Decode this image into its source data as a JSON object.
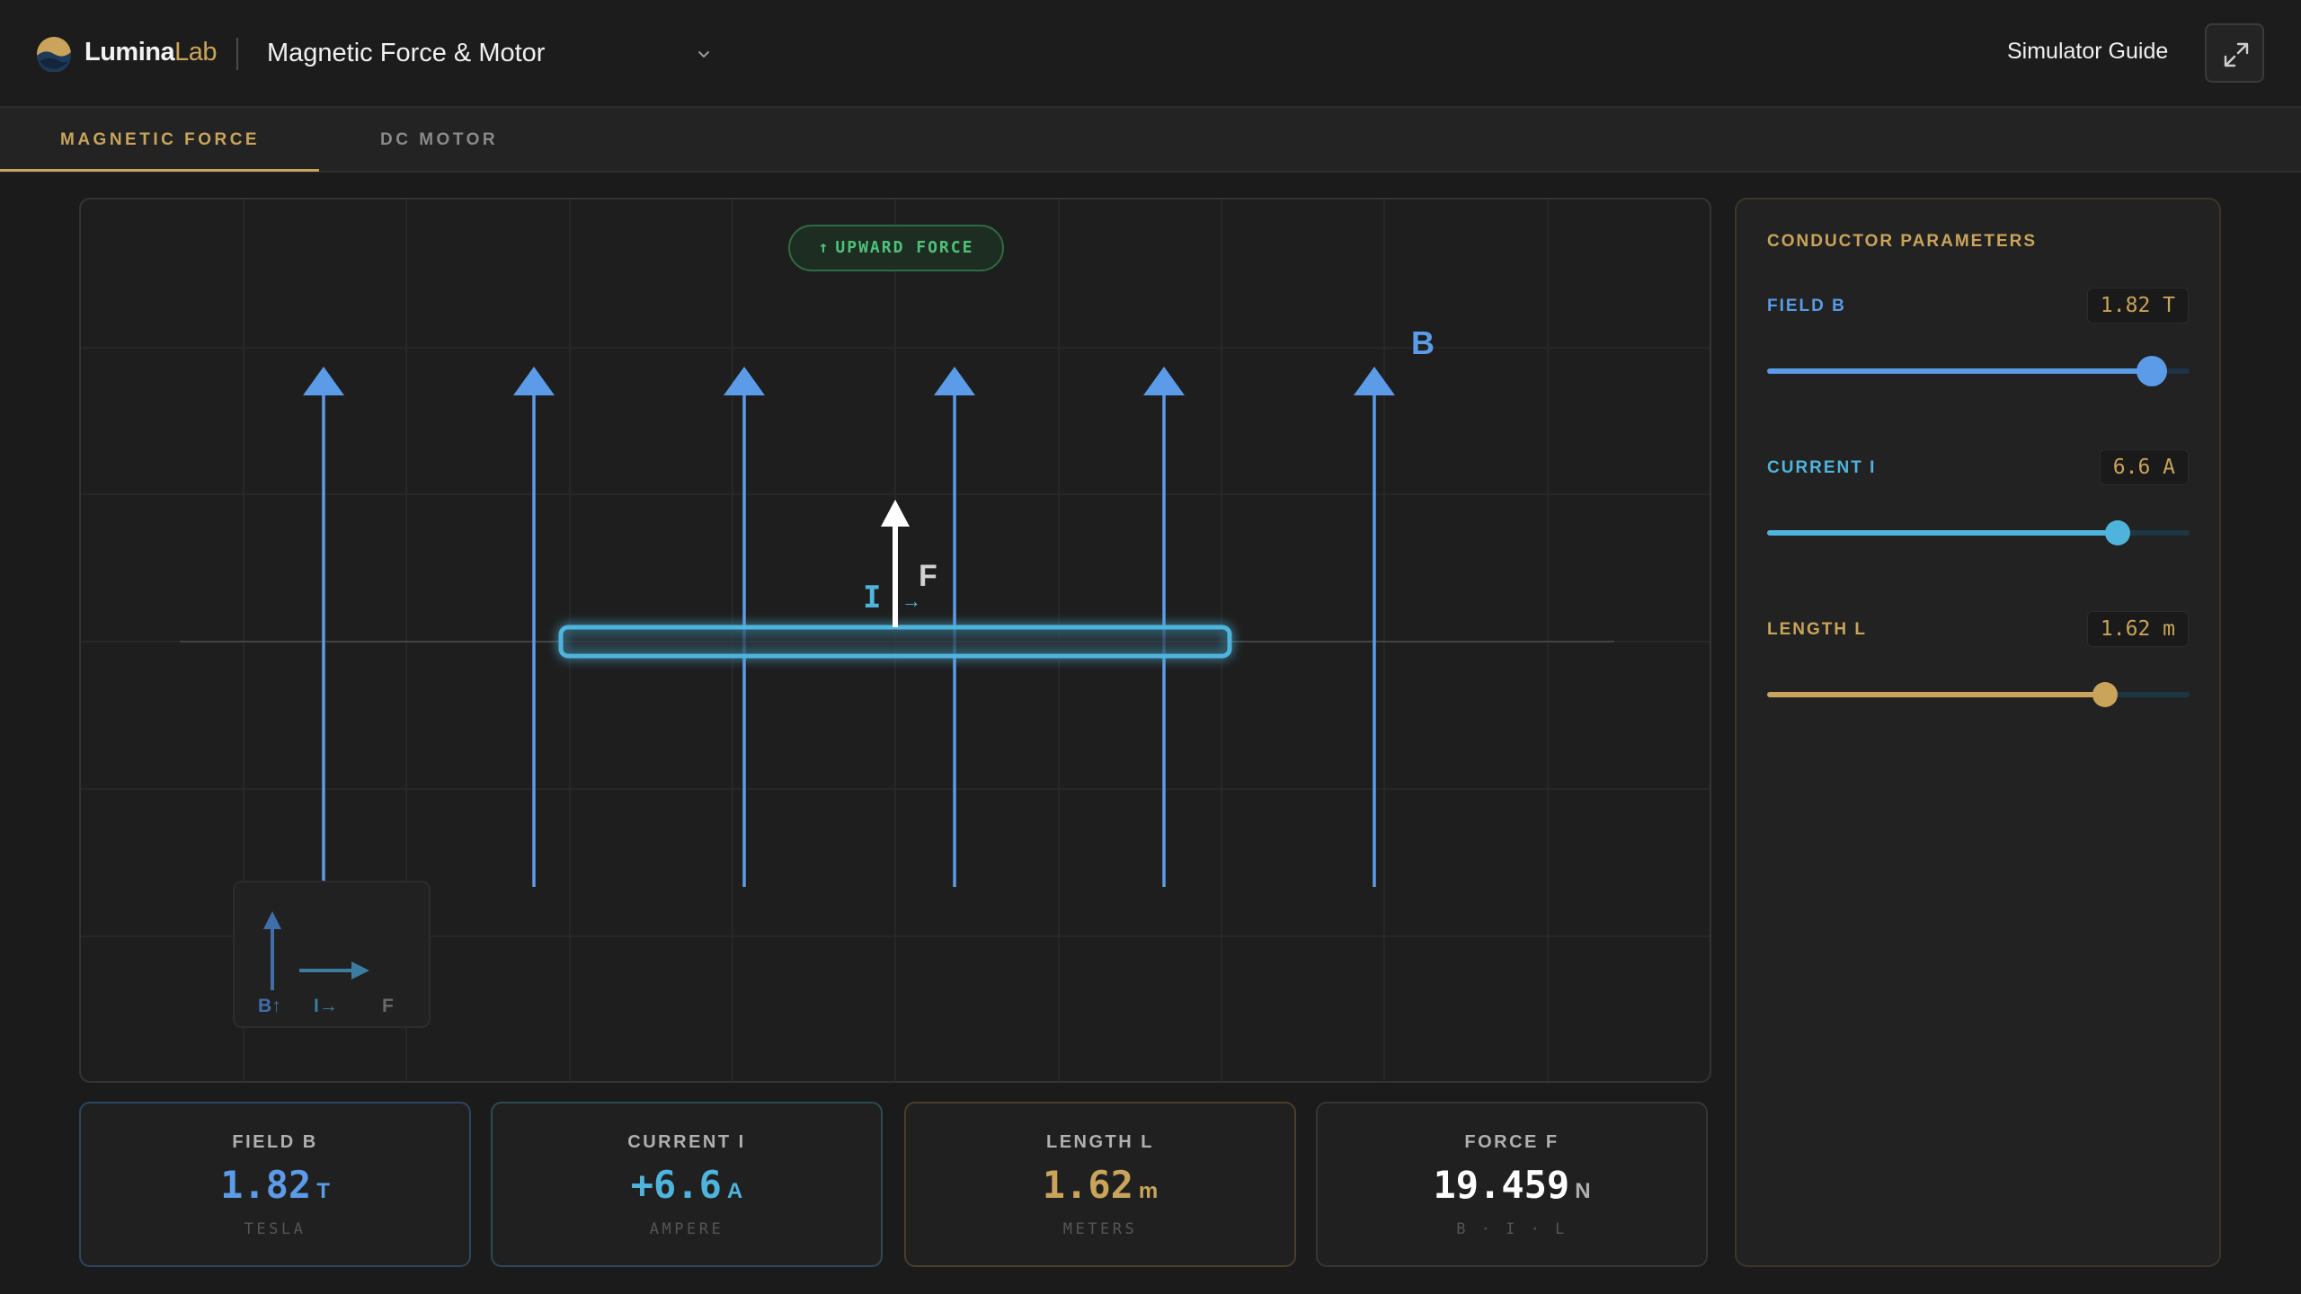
{
  "header": {
    "brand_primary": "Lumina",
    "brand_accent": "Lab",
    "title": "Magnetic Force & Motor",
    "guide_label": "Simulator Guide"
  },
  "tabs": [
    {
      "label": "MAGNETIC FORCE",
      "active": true
    },
    {
      "label": "DC MOTOR",
      "active": false
    }
  ],
  "canvas": {
    "badge_arrow": "↑",
    "badge_label": "UPWARD FORCE",
    "field_label": "B",
    "current_label": "I",
    "current_arrow": "→",
    "force_label": "F",
    "legend": {
      "b": "B↑",
      "i": "I→",
      "f": "F"
    }
  },
  "stats": [
    {
      "label": "FIELD B",
      "value": "1.82",
      "unit": "T",
      "sub": "TESLA",
      "color": "#5b9be8"
    },
    {
      "label": "CURRENT I",
      "value": "+6.6",
      "unit": "A",
      "sub": "AMPERE",
      "color": "#4fb4dc"
    },
    {
      "label": "LENGTH L",
      "value": "1.62",
      "unit": "m",
      "sub": "METERS",
      "color": "#c9a45a"
    },
    {
      "label": "FORCE F",
      "value": "19.459",
      "unit": "N",
      "sub": "B · I · L",
      "color": "#ffffff"
    }
  ],
  "panel": {
    "title": "CONDUCTOR PARAMETERS",
    "params": [
      {
        "label": "FIELD B",
        "value": "1.82 T",
        "fraction": 0.91,
        "color": "#5b9be8"
      },
      {
        "label": "CURRENT I",
        "value": "6.6 A",
        "fraction": 0.83,
        "color": "#4fb4dc"
      },
      {
        "label": "LENGTH L",
        "value": "1.62 m",
        "fraction": 0.8,
        "color": "#c9a45a"
      }
    ]
  },
  "colors": {
    "accent": "#c9a45a",
    "field": "#5b9be8",
    "current": "#4fb4dc",
    "force": "#ffffff",
    "badge_green": "#4fc27a"
  },
  "icons": [
    "luminalab-logo-icon",
    "chevron-down-icon",
    "expand-icon"
  ]
}
